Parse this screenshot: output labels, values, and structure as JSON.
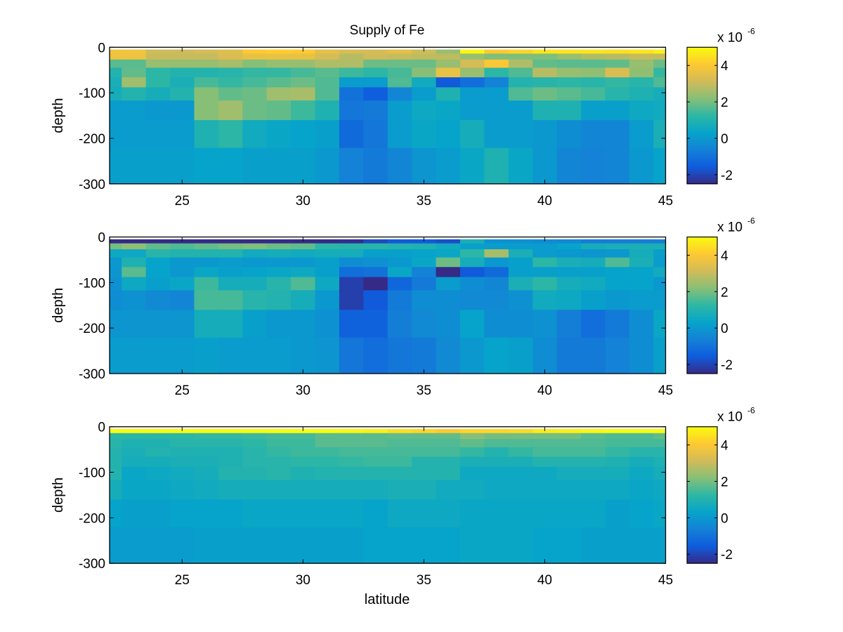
{
  "figure": {
    "title": "Supply of Fe"
  },
  "chart_data": {
    "type": "heatmap",
    "title": "Supply of Fe",
    "colormap": "parula",
    "colormap_stops": [
      "#352A87",
      "#0F5CDD",
      "#1481D6",
      "#06A4CA",
      "#2EB7A4",
      "#87BF77",
      "#D1BB59",
      "#FEC832",
      "#F9FB0E"
    ],
    "clim": [
      -2.5,
      5
    ],
    "value_scale_label": "x 10",
    "value_scale_exponent": "-6",
    "x": [
      22,
      23,
      24,
      25,
      26,
      27,
      28,
      29,
      30,
      31,
      32,
      33,
      34,
      35,
      36,
      37,
      38,
      39,
      40,
      41,
      42,
      43,
      44,
      45
    ],
    "x_edges": [
      22,
      22.5,
      23.5,
      24.5,
      25.5,
      26.5,
      27.5,
      28.5,
      29.5,
      30.5,
      31.5,
      32.5,
      33.5,
      34.5,
      35.5,
      36.5,
      37.5,
      38.5,
      39.5,
      40.5,
      41.5,
      42.5,
      43.5,
      44.5,
      45
    ],
    "depth_edges": [
      -5,
      -14,
      -27,
      -45,
      -66,
      -88,
      -117,
      -160,
      -221,
      -300
    ],
    "xlabel": "latitude",
    "ylabel": "depth",
    "xlim": [
      22,
      45
    ],
    "ylim": [
      -300,
      0
    ],
    "xticks": [
      "25",
      "30",
      "35",
      "40",
      "45"
    ],
    "xtick_values": [
      25,
      30,
      35,
      40,
      45
    ],
    "yticks": [
      "0",
      "-100",
      "-200",
      "-300"
    ],
    "ytick_values": [
      0,
      -100,
      -200,
      -300
    ],
    "colorbar_ticks": [
      "4",
      "2",
      "0",
      "-2"
    ],
    "colorbar_tick_values": [
      4,
      2,
      0,
      -2
    ],
    "panels": [
      {
        "name": "panel-top",
        "title": "Supply of Fe",
        "values": [
          [
            3.8,
            3.8,
            3.1,
            3.1,
            3.2,
            3.4,
            4.1,
            4.2,
            4.1,
            3.5,
            3.3,
            3.2,
            3.5,
            3.1,
            2.4,
            4.9,
            4.1,
            4.3,
            4.6,
            4.6,
            4.6,
            4.5,
            4.6,
            4.8
          ],
          [
            3.7,
            3.7,
            3.0,
            3.0,
            3.0,
            3.3,
            3.6,
            3.6,
            3.6,
            3.2,
            2.8,
            3.1,
            3.0,
            2.9,
            2.9,
            2.4,
            2.1,
            2.1,
            2.1,
            2.4,
            2.7,
            2.8,
            3.0,
            3.0
          ],
          [
            1.7,
            1.7,
            2.4,
            2.4,
            2.4,
            2.6,
            2.2,
            2.4,
            2.4,
            2.7,
            2.7,
            1.9,
            1.9,
            1.9,
            2.4,
            3.2,
            4.0,
            2.7,
            1.8,
            1.7,
            1.7,
            1.8,
            2.4,
            1.9
          ],
          [
            1.0,
            1.8,
            1.2,
            1.0,
            1.0,
            1.1,
            1.3,
            1.3,
            1.5,
            1.7,
            1.4,
            1.2,
            1.5,
            2.2,
            3.6,
            2.4,
            1.2,
            1.6,
            2.8,
            2.4,
            2.3,
            3.3,
            2.3,
            1.3
          ],
          [
            0.8,
            2.5,
            1.2,
            0.8,
            1.5,
            1.3,
            1.5,
            1.7,
            1.9,
            1.6,
            0.1,
            0.1,
            1.6,
            0.6,
            -1.6,
            -1.1,
            -0.6,
            1.0,
            1.1,
            1.2,
            1.1,
            1.3,
            1.1,
            1.6
          ],
          [
            0.7,
            1.0,
            0.7,
            1.0,
            2.2,
            1.8,
            1.9,
            2.5,
            2.6,
            1.6,
            -1.0,
            -1.5,
            -0.5,
            0.1,
            0.9,
            0.1,
            0.1,
            1.6,
            1.9,
            1.7,
            1.5,
            1.1,
            0.9,
            0.7
          ],
          [
            0.1,
            0.1,
            0.0,
            0.0,
            2.2,
            2.5,
            1.9,
            1.8,
            1.4,
            0.9,
            -0.9,
            -0.8,
            0.1,
            0.5,
            0.4,
            0.1,
            0.1,
            0.1,
            0.9,
            0.9,
            0.2,
            0.2,
            0.5,
            0.6
          ],
          [
            0.1,
            0.1,
            0.1,
            0.1,
            0.9,
            1.2,
            0.6,
            0.4,
            0.3,
            0.2,
            -1.2,
            -0.9,
            0.1,
            0.4,
            0.3,
            0.7,
            0.1,
            0.1,
            0.0,
            -0.3,
            -0.5,
            -0.5,
            0.1,
            0.8
          ],
          [
            0.2,
            0.2,
            0.2,
            0.2,
            0.3,
            0.3,
            0.2,
            0.2,
            0.2,
            0.0,
            -0.6,
            -0.8,
            -0.5,
            -0.1,
            0.1,
            0.4,
            0.9,
            0.4,
            0.0,
            -0.5,
            -0.6,
            -0.5,
            0.0,
            0.3
          ]
        ]
      },
      {
        "name": "panel-middle",
        "title": "",
        "values": [
          [
            -2.5,
            -2.5,
            -2.5,
            -2.5,
            -2.5,
            -2.5,
            -2.5,
            -2.5,
            -2.5,
            -2.5,
            -2.4,
            -1.9,
            -1.6,
            -1.6,
            -1.8,
            0.8,
            -0.2,
            -0.2,
            -0.3,
            -0.4,
            -0.7,
            -0.7,
            -0.7,
            -0.7
          ],
          [
            2.0,
            2.3,
            1.8,
            1.6,
            1.8,
            2.0,
            2.1,
            1.9,
            1.8,
            1.2,
            1.1,
            1.1,
            1.0,
            0.9,
            0.6,
            0.2,
            0.1,
            0.1,
            0.1,
            0.3,
            0.7,
            0.8,
            0.8,
            0.8
          ],
          [
            0.5,
            0.5,
            1.1,
            1.0,
            1.0,
            1.0,
            0.6,
            0.7,
            0.6,
            0.7,
            0.7,
            0.2,
            0.2,
            0.3,
            0.4,
            1.2,
            2.6,
            0.8,
            0.1,
            0.0,
            -0.1,
            0.0,
            0.7,
            0.2
          ],
          [
            0.0,
            0.9,
            0.3,
            0.0,
            0.0,
            0.1,
            0.0,
            0.0,
            0.0,
            0.2,
            -0.3,
            -0.2,
            0.0,
            0.4,
            1.9,
            0.7,
            0.0,
            0.2,
            1.2,
            0.8,
            0.7,
            1.6,
            0.8,
            0.1
          ],
          [
            -0.1,
            1.7,
            0.3,
            0.0,
            0.4,
            0.2,
            0.3,
            0.4,
            0.5,
            0.2,
            -1.1,
            -1.0,
            0.4,
            -0.6,
            -2.5,
            -1.6,
            -1.2,
            0.2,
            0.2,
            0.2,
            0.2,
            0.3,
            0.3,
            0.6
          ],
          [
            -0.2,
            0.5,
            0.2,
            0.4,
            1.4,
            0.7,
            0.7,
            1.1,
            1.6,
            0.5,
            -2.1,
            -2.5,
            -1.3,
            -0.8,
            0.1,
            -0.3,
            -0.5,
            0.8,
            1.2,
            0.7,
            0.6,
            0.3,
            0.3,
            0.0
          ],
          [
            -0.3,
            -0.2,
            -0.4,
            -0.5,
            1.5,
            1.5,
            1.1,
            1.0,
            0.7,
            0.0,
            -2.1,
            -1.6,
            -0.8,
            -0.3,
            -0.3,
            -0.4,
            -0.4,
            -0.2,
            0.6,
            0.5,
            0.2,
            0.0,
            0.1,
            0.1
          ],
          [
            -0.1,
            -0.1,
            -0.1,
            -0.1,
            0.7,
            0.7,
            0.2,
            0.0,
            0.0,
            -0.2,
            -1.4,
            -1.4,
            -0.7,
            -0.4,
            -0.3,
            0.3,
            -0.3,
            -0.3,
            -0.2,
            -0.7,
            -1.1,
            -0.8,
            -0.3,
            0.4
          ],
          [
            0.1,
            0.1,
            0.1,
            0.1,
            0.2,
            0.1,
            0.1,
            0.1,
            0.0,
            -0.1,
            -0.9,
            -1.1,
            -0.9,
            -0.8,
            -0.4,
            0.0,
            0.3,
            0.2,
            -0.3,
            -0.8,
            -0.8,
            -0.6,
            -0.3,
            0.2
          ]
        ]
      },
      {
        "name": "panel-bottom",
        "title": "",
        "values": [
          [
            5.0,
            5.0,
            5.0,
            5.0,
            5.0,
            5.0,
            5.0,
            5.0,
            5.0,
            5.0,
            4.9,
            4.8,
            4.5,
            4.3,
            4.1,
            4.3,
            4.3,
            4.4,
            4.7,
            4.8,
            4.9,
            5.0,
            5.0,
            5.0
          ],
          [
            1.2,
            1.2,
            1.2,
            1.2,
            1.3,
            1.3,
            1.4,
            1.5,
            1.5,
            1.7,
            1.7,
            1.7,
            1.8,
            1.8,
            1.8,
            2.2,
            2.0,
            2.0,
            2.0,
            2.0,
            1.7,
            1.6,
            1.6,
            1.8
          ],
          [
            1.1,
            0.9,
            0.9,
            1.1,
            1.1,
            1.1,
            1.2,
            1.4,
            1.4,
            1.7,
            1.7,
            1.7,
            1.6,
            1.6,
            1.6,
            1.8,
            1.6,
            1.6,
            1.6,
            1.6,
            1.6,
            1.5,
            1.5,
            1.5
          ],
          [
            1.0,
            0.8,
            1.0,
            0.9,
            0.9,
            0.9,
            1.1,
            1.3,
            1.4,
            1.4,
            1.5,
            1.5,
            1.5,
            1.5,
            1.5,
            1.3,
            1.0,
            1.3,
            1.5,
            1.5,
            1.5,
            1.3,
            1.1,
            1.1
          ],
          [
            1.0,
            0.7,
            0.7,
            0.8,
            0.8,
            0.9,
            1.1,
            1.1,
            1.2,
            1.2,
            1.3,
            1.4,
            1.4,
            1.0,
            1.0,
            0.8,
            0.8,
            0.8,
            1.0,
            1.0,
            1.0,
            0.9,
            0.7,
            0.9
          ],
          [
            1.0,
            0.4,
            0.5,
            0.6,
            0.7,
            1.0,
            1.0,
            1.1,
            0.9,
            1.0,
            1.0,
            1.0,
            1.0,
            1.0,
            1.0,
            0.5,
            0.5,
            0.5,
            0.5,
            0.7,
            0.7,
            0.7,
            0.5,
            0.7
          ],
          [
            0.7,
            0.4,
            0.4,
            0.5,
            0.6,
            0.7,
            0.7,
            0.7,
            0.7,
            0.7,
            0.7,
            0.7,
            0.8,
            0.8,
            0.6,
            0.6,
            0.5,
            0.5,
            0.5,
            0.5,
            0.5,
            0.5,
            0.4,
            0.5
          ],
          [
            0.3,
            0.2,
            0.2,
            0.3,
            0.3,
            0.3,
            0.4,
            0.4,
            0.4,
            0.4,
            0.4,
            0.3,
            0.5,
            0.5,
            0.5,
            0.4,
            0.4,
            0.4,
            0.4,
            0.4,
            0.4,
            0.2,
            0.3,
            0.4
          ],
          [
            0.1,
            0.1,
            0.1,
            0.1,
            0.2,
            0.2,
            0.2,
            0.2,
            0.2,
            0.2,
            0.2,
            0.3,
            0.3,
            0.3,
            0.3,
            0.4,
            0.4,
            0.4,
            0.3,
            0.3,
            0.2,
            0.2,
            0.2,
            0.2
          ]
        ]
      }
    ]
  }
}
